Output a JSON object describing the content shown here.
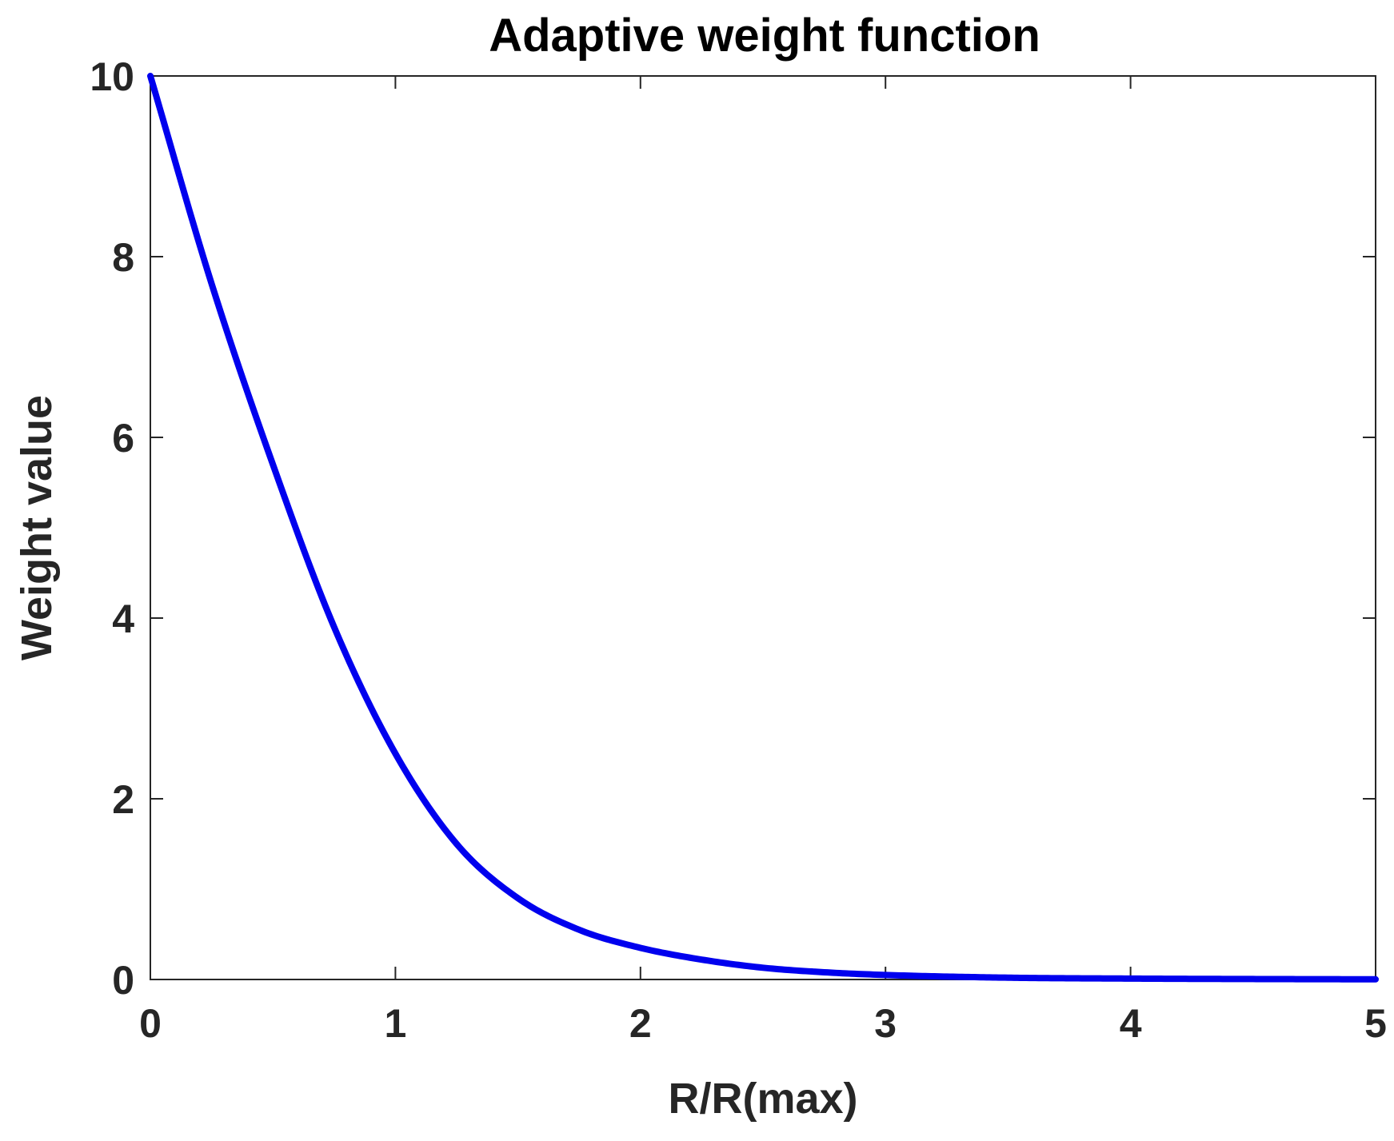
{
  "chart_data": {
    "type": "line",
    "title": "Adaptive weight function",
    "xlabel": "R/R(max)",
    "ylabel": "Weight value",
    "xlim": [
      0,
      5
    ],
    "ylim": [
      0,
      10
    ],
    "xticks": [
      0,
      1,
      2,
      3,
      4,
      5
    ],
    "xtick_labels": [
      "0",
      "1",
      "2",
      "3",
      "4",
      "5"
    ],
    "yticks": [
      0,
      2,
      4,
      6,
      8,
      10
    ],
    "ytick_labels": [
      "0",
      "2",
      "4",
      "6",
      "8",
      "10"
    ],
    "grid": false,
    "series": [
      {
        "color": "#0000ee",
        "x": [
          0,
          0.25,
          0.5,
          0.75,
          1.0,
          1.25,
          1.5,
          1.75,
          2.0,
          2.25,
          2.5,
          2.75,
          3.0,
          3.5,
          4.0,
          4.5,
          5.0
        ],
        "y": [
          10.0,
          7.7,
          5.7,
          3.9,
          2.5,
          1.5,
          0.9,
          0.55,
          0.35,
          0.22,
          0.13,
          0.08,
          0.05,
          0.02,
          0.01,
          0.005,
          0.002
        ]
      }
    ]
  }
}
